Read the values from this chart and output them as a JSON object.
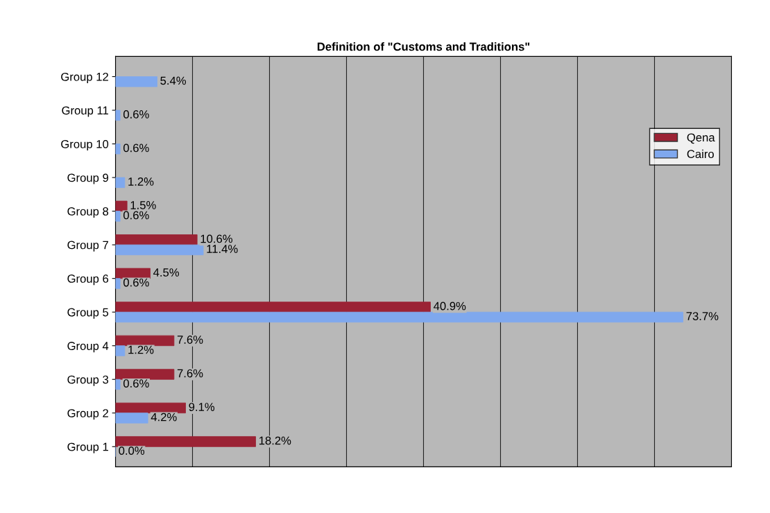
{
  "chart_data": {
    "type": "bar",
    "orientation": "horizontal",
    "title": "Definition of \"Customs and Traditions\"",
    "categories": [
      "Group 12",
      "Group 11",
      "Group 10",
      "Group 9",
      "Group 8",
      "Group 7",
      "Group 6",
      "Group 5",
      "Group 4",
      "Group 3",
      "Group 2",
      "Group 1"
    ],
    "series": [
      {
        "name": "Qena",
        "color": "#9b2335",
        "values": [
          null,
          null,
          null,
          null,
          1.5,
          10.6,
          4.5,
          40.9,
          7.6,
          7.6,
          9.1,
          18.2
        ],
        "value_labels": [
          null,
          null,
          null,
          null,
          "1.5%",
          "10.6%",
          "4.5%",
          "40.9%",
          "7.6%",
          "7.6%",
          "9.1%",
          "18.2%"
        ]
      },
      {
        "name": "Cairo",
        "color": "#7fa8ee",
        "values": [
          5.4,
          0.6,
          0.6,
          1.2,
          0.6,
          11.4,
          0.6,
          73.7,
          1.2,
          0.6,
          4.2,
          0.0
        ],
        "value_labels": [
          "5.4%",
          "0.6%",
          "0.6%",
          "1.2%",
          "0.6%",
          "11.4%",
          "0.6%",
          "73.7%",
          "1.2%",
          "0.6%",
          "4.2%",
          "0.0%"
        ]
      }
    ],
    "xlim": [
      0,
      80
    ],
    "xticks": [
      {
        "value": 0,
        "label": null
      },
      {
        "value": 10,
        "label": null
      },
      {
        "value": 20,
        "label": null
      },
      {
        "value": 30,
        "label": null
      },
      {
        "value": 40,
        "label": null
      },
      {
        "value": 50,
        "label": null
      },
      {
        "value": 60,
        "label": null
      },
      {
        "value": 70,
        "label": null
      },
      {
        "value": 80,
        "label": null
      }
    ],
    "grid": "x",
    "legend": "right",
    "tick_labels": "y"
  }
}
